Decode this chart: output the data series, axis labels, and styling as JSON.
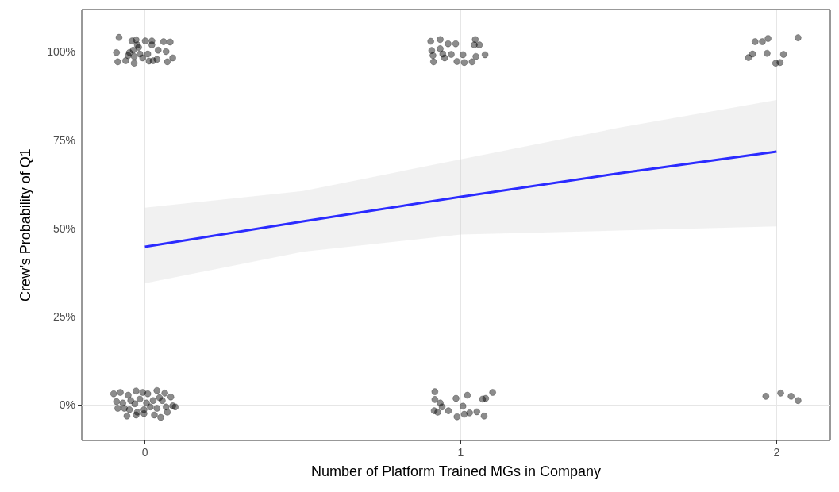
{
  "chart_data": {
    "type": "scatter",
    "xlabel": "Number of Platform Trained MGs in Company",
    "ylabel": "Crew’s Probability of Q1",
    "xlim": [
      -0.2,
      2.17
    ],
    "ylim": [
      -10,
      112
    ],
    "xticks": [
      0,
      1,
      2
    ],
    "yticks": [
      {
        "value": 0,
        "label": "0%"
      },
      {
        "value": 25,
        "label": "25%"
      },
      {
        "value": 50,
        "label": "50%"
      },
      {
        "value": 75,
        "label": "75%"
      },
      {
        "value": 100,
        "label": "100%"
      }
    ],
    "grid": true,
    "marker": "circle",
    "series": [
      {
        "color": "#000000",
        "x": [
          1.932,
          1.955,
          1.973,
          1.924,
          1.911,
          1.97,
          2.022,
          1.997,
          2.011,
          2.068,
          1.966,
          2.013,
          2.046,
          2.068,
          0.905,
          0.935,
          0.96,
          0.984,
          0.908,
          0.935,
          0.912,
          0.943,
          0.97,
          1.007,
          0.914,
          0.949,
          0.988,
          1.011,
          1.036,
          1.048,
          1.077,
          1.046,
          1.043,
          1.059,
          0.918,
          0.918,
          0.935,
          0.941,
          0.916,
          0.927,
          0.961,
          0.985,
          1.021,
          1.007,
          0.988,
          1.011,
          1.028,
          1.051,
          1.074,
          1.069,
          1.079,
          1.101,
          -0.082,
          -0.041,
          -0.028,
          0.001,
          0.022,
          0.059,
          0.08,
          -0.09,
          -0.086,
          -0.061,
          -0.053,
          -0.037,
          -0.034,
          -0.034,
          -0.02,
          -0.016,
          -0.007,
          0.009,
          0.013,
          0.022,
          0.026,
          0.038,
          0.042,
          0.067,
          0.071,
          0.088,
          -0.024,
          -0.049,
          -0.099,
          -0.078,
          -0.053,
          -0.028,
          -0.007,
          0.009,
          0.038,
          0.063,
          0.082,
          -0.09,
          -0.07,
          -0.045,
          -0.032,
          -0.016,
          0.005,
          0.026,
          0.046,
          0.055,
          -0.086,
          -0.065,
          -0.049,
          -0.024,
          -0.003,
          0.017,
          0.038,
          0.067,
          0.088,
          0.096,
          -0.057,
          -0.028,
          -0.003,
          0.03,
          0.05,
          0.071
        ],
        "values": [
          102.9,
          102.9,
          103.8,
          99.4,
          98.4,
          99.6,
          99.3,
          96.8,
          97.0,
          104.0,
          2.5,
          3.4,
          2.5,
          1.3,
          103.0,
          103.5,
          102.3,
          102.3,
          100.4,
          100.9,
          99.0,
          99.4,
          99.3,
          99.2,
          97.2,
          98.3,
          97.3,
          97.0,
          97.2,
          98.7,
          99.2,
          103.5,
          102.0,
          102.0,
          3.8,
          1.6,
          0.6,
          -0.5,
          -1.6,
          -2.0,
          -1.6,
          1.9,
          2.8,
          -0.3,
          -3.3,
          -2.6,
          -2.2,
          -1.9,
          -3.1,
          1.7,
          1.9,
          3.6,
          104.1,
          103.1,
          103.4,
          103.1,
          103.1,
          102.9,
          102.8,
          99.8,
          97.2,
          97.5,
          99.0,
          100.5,
          98.7,
          96.8,
          101.3,
          99.4,
          98.3,
          99.4,
          97.4,
          102.0,
          97.5,
          97.9,
          100.5,
          100.1,
          97.2,
          98.3,
          102.0,
          99.8,
          3.2,
          3.6,
          2.8,
          4.0,
          3.6,
          3.2,
          4.1,
          3.4,
          2.3,
          1.0,
          0.6,
          1.3,
          0.4,
          1.7,
          0.6,
          1.3,
          2.1,
          1.3,
          -0.9,
          -0.9,
          -1.3,
          -2.0,
          -1.3,
          -0.5,
          -0.9,
          -0.5,
          -0.2,
          -0.5,
          -3.1,
          -2.8,
          -2.4,
          -2.8,
          -3.5,
          -2.0
        ]
      },
      {
        "type": "line",
        "color": "#2b2bff",
        "line_style": "solid",
        "marker": "none",
        "x": [
          0,
          0.5,
          1,
          1.5,
          2
        ],
        "values": [
          44.8,
          52,
          59,
          65.6,
          71.8
        ],
        "lower": [
          34.5,
          43.4,
          48.3,
          49.4,
          50.6
        ],
        "upper": [
          55.9,
          60.6,
          69.6,
          78.5,
          86.4
        ]
      }
    ]
  }
}
